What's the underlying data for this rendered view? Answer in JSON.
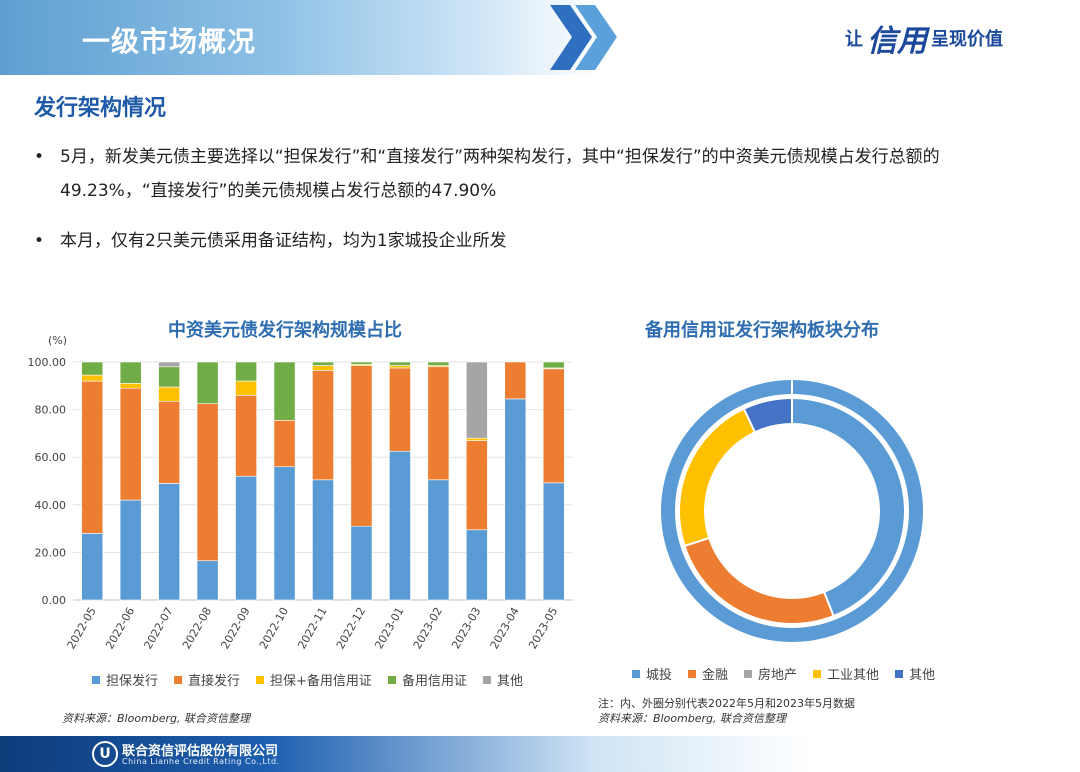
{
  "header": {
    "title": "一级市场概况",
    "slogan_pre": "让",
    "slogan_mid": "信用",
    "slogan_post": "呈现价值"
  },
  "section_title": "发行架构情况",
  "bullets": [
    "5月，新发美元债主要选择以“担保发行”和“直接发行”两种架构发行，其中“担保发行”的中资美元债规模占发行总额的49.23%，“直接发行”的美元债规模占发行总额的47.90%",
    "本月，仅有2只美元债采用备证结构，均为1家城投企业所发"
  ],
  "colors": {
    "担保发行": "#5b9bd5",
    "直接发行": "#ed7d31",
    "担保+备用信用证": "#ffc000",
    "备用信用证": "#70ad47",
    "其他": "#a5a5a5",
    "城投": "#5b9bd5",
    "金融": "#ed7d31",
    "房地产": "#a5a5a5",
    "工业其他": "#ffc000",
    "其他2": "#4472c4"
  },
  "chart_data": [
    {
      "type": "bar",
      "stacked": true,
      "title": "中资美元债发行架构规模占比",
      "ylabel": "(%)",
      "ylim": [
        0,
        100
      ],
      "yticks": [
        "0.00",
        "20.00",
        "40.00",
        "60.00",
        "80.00",
        "100.00"
      ],
      "categories": [
        "2022-05",
        "2022-06",
        "2022-07",
        "2022-08",
        "2022-09",
        "2022-10",
        "2022-11",
        "2022-12",
        "2023-01",
        "2023-02",
        "2023-03",
        "2023-04",
        "2023-05"
      ],
      "series": [
        {
          "name": "担保发行",
          "values": [
            28,
            42,
            49,
            16.5,
            52,
            56,
            50.5,
            31,
            62.5,
            50.5,
            29.5,
            84.5,
            49.23
          ]
        },
        {
          "name": "直接发行",
          "values": [
            64,
            47,
            34.5,
            66,
            34,
            19.5,
            46,
            67.5,
            35,
            47.5,
            37.5,
            15.5,
            47.9
          ]
        },
        {
          "name": "担保+备用信用证",
          "values": [
            2.5,
            2,
            6,
            0,
            6,
            0,
            2,
            0.5,
            1,
            0.5,
            1,
            0,
            0.37
          ]
        },
        {
          "name": "备用信用证",
          "values": [
            5.5,
            9,
            8.5,
            17.5,
            8,
            24.5,
            1.5,
            1,
            1.5,
            1.5,
            0,
            0,
            2.5
          ]
        },
        {
          "name": "其他",
          "values": [
            0,
            0,
            2,
            0,
            0,
            0,
            0,
            0,
            0,
            0,
            32,
            0,
            0
          ]
        }
      ],
      "source": "资料来源：Bloomberg, 联合资信整理"
    },
    {
      "type": "pie",
      "donut": true,
      "title": "备用信用证发行架构板块分布",
      "rings": [
        {
          "name": "2023年5月",
          "ring": "outer",
          "slices": [
            {
              "label": "城投",
              "value": 100
            }
          ]
        },
        {
          "name": "2022年5月",
          "ring": "inner",
          "slices": [
            {
              "label": "城投",
              "value": 44
            },
            {
              "label": "金融",
              "value": 26
            },
            {
              "label": "房地产",
              "value": 0
            },
            {
              "label": "工业其他",
              "value": 23
            },
            {
              "label": "其他",
              "value": 7
            }
          ]
        }
      ],
      "legend": [
        "城投",
        "金融",
        "房地产",
        "工业其他",
        "其他"
      ],
      "note": "注：内、外圈分别代表2022年5月和2023年5月数据",
      "source": "资料来源：Bloomberg, 联合资信整理"
    }
  ],
  "footer": {
    "company_cn": "联合资信评估股份有限公司",
    "company_en": "China Lianhe Credit Rating Co.,Ltd.",
    "logo_text": "U"
  }
}
